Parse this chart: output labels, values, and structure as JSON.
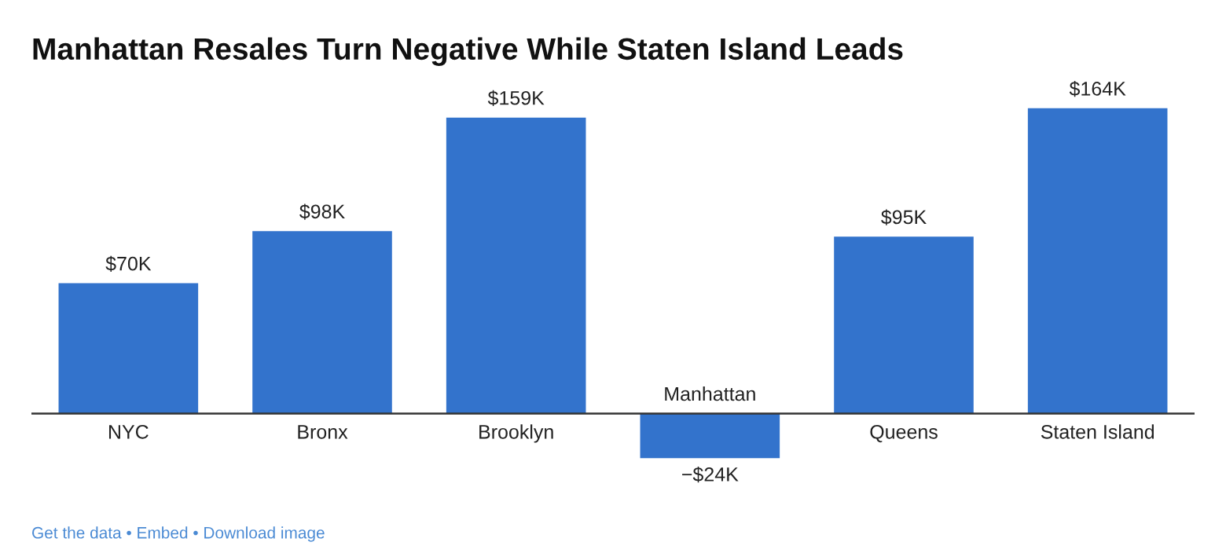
{
  "chart_data": {
    "type": "bar",
    "title": "Manhattan Resales Turn Negative While Staten Island Leads",
    "categories": [
      "NYC",
      "Bronx",
      "Brooklyn",
      "Manhattan",
      "Queens",
      "Staten Island"
    ],
    "values": [
      70,
      98,
      159,
      -24,
      95,
      164
    ],
    "value_labels": [
      "$70K",
      "$98K",
      "$159K",
      "−$24K",
      "$95K",
      "$164K"
    ],
    "color": "#3373cc",
    "annotations": [
      "Get the data • Embed • Download image"
    ]
  }
}
